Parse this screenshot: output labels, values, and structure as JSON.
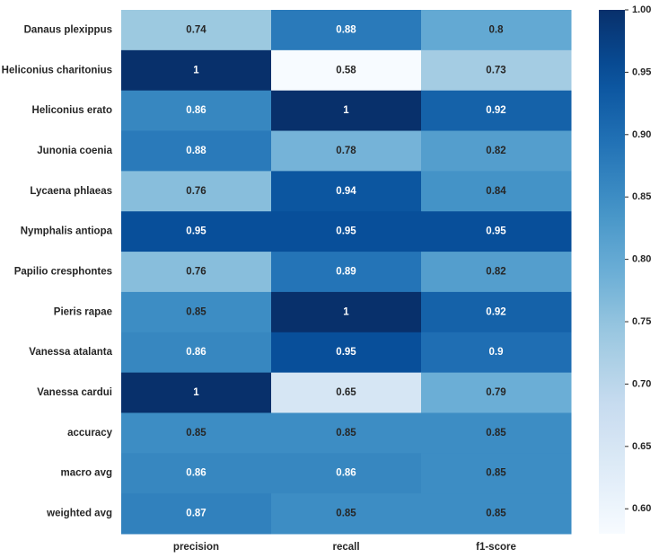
{
  "chart_data": {
    "type": "heatmap",
    "title": "",
    "xlabel": "",
    "ylabel": "",
    "rows": [
      "Danaus plexippus",
      "Heliconius charitonius",
      "Heliconius erato",
      "Junonia coenia",
      "Lycaena phlaeas",
      "Nymphalis antiopa",
      "Papilio cresphontes",
      "Pieris rapae",
      "Vanessa atalanta",
      "Vanessa cardui",
      "accuracy",
      "macro avg",
      "weighted avg"
    ],
    "columns": [
      "precision",
      "recall",
      "f1-score"
    ],
    "values": [
      [
        0.74,
        0.88,
        0.8
      ],
      [
        1,
        0.58,
        0.73
      ],
      [
        0.86,
        1,
        0.92
      ],
      [
        0.88,
        0.78,
        0.82
      ],
      [
        0.76,
        0.94,
        0.84
      ],
      [
        0.95,
        0.95,
        0.95
      ],
      [
        0.76,
        0.89,
        0.82
      ],
      [
        0.85,
        1,
        0.92
      ],
      [
        0.86,
        0.95,
        0.9
      ],
      [
        1,
        0.65,
        0.79
      ],
      [
        0.85,
        0.85,
        0.85
      ],
      [
        0.86,
        0.86,
        0.85
      ],
      [
        0.87,
        0.85,
        0.85
      ]
    ],
    "cell_labels": [
      [
        "0.74",
        "0.88",
        "0.8"
      ],
      [
        "1",
        "0.58",
        "0.73"
      ],
      [
        "0.86",
        "1",
        "0.92"
      ],
      [
        "0.88",
        "0.78",
        "0.82"
      ],
      [
        "0.76",
        "0.94",
        "0.84"
      ],
      [
        "0.95",
        "0.95",
        "0.95"
      ],
      [
        "0.76",
        "0.89",
        "0.82"
      ],
      [
        "0.85",
        "1",
        "0.92"
      ],
      [
        "0.86",
        "0.95",
        "0.9"
      ],
      [
        "1",
        "0.65",
        "0.79"
      ],
      [
        "0.85",
        "0.85",
        "0.85"
      ],
      [
        "0.86",
        "0.86",
        "0.85"
      ],
      [
        "0.87",
        "0.85",
        "0.85"
      ]
    ],
    "colormap": "Blues",
    "color_range": [
      0.58,
      1.0
    ],
    "colorbar_ticks": [
      "0.60",
      "0.65",
      "0.70",
      "0.75",
      "0.80",
      "0.85",
      "0.90",
      "0.95",
      "1.00"
    ],
    "colorbar_position": "right",
    "grid": false
  }
}
